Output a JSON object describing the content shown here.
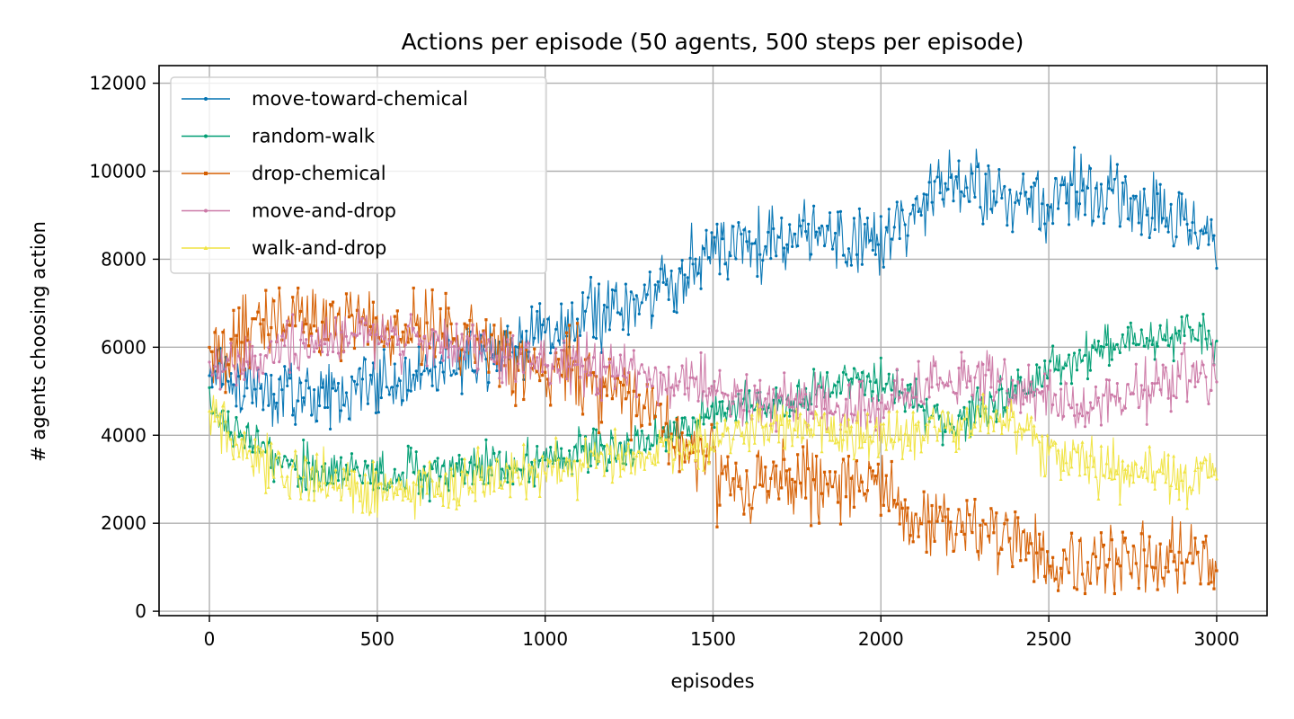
{
  "chart_data": {
    "type": "line",
    "title": "Actions per episode (50 agents, 500 steps per episode)",
    "xlabel": "episodes",
    "ylabel": "# agents choosing action",
    "xlim": [
      -150,
      3150
    ],
    "ylim": [
      -100,
      12400
    ],
    "xticks": [
      0,
      500,
      1000,
      1500,
      2000,
      2500,
      3000
    ],
    "yticks": [
      0,
      2000,
      4000,
      6000,
      8000,
      10000,
      12000
    ],
    "grid": true,
    "legend_position": "top-left",
    "series": [
      {
        "name": "move-toward-chemical",
        "color": "#0072b2",
        "marker": "circle",
        "x": [
          0,
          100,
          200,
          300,
          400,
          500,
          600,
          700,
          800,
          900,
          1000,
          1100,
          1200,
          1300,
          1400,
          1500,
          1600,
          1700,
          1800,
          1900,
          2000,
          2100,
          2200,
          2300,
          2400,
          2500,
          2600,
          2700,
          2800,
          2900,
          3000
        ],
        "values": [
          5400,
          5200,
          5000,
          4900,
          5000,
          5200,
          5400,
          5600,
          5800,
          6000,
          6300,
          6600,
          6800,
          7000,
          7600,
          8200,
          8600,
          8400,
          8700,
          8300,
          8500,
          8900,
          9800,
          9600,
          9300,
          9400,
          9700,
          9500,
          9200,
          8800,
          8600
        ],
        "amplitude": 1200
      },
      {
        "name": "random-walk",
        "color": "#009e73",
        "marker": "circle",
        "x": [
          0,
          100,
          200,
          300,
          400,
          500,
          600,
          700,
          800,
          900,
          1000,
          1100,
          1200,
          1300,
          1400,
          1500,
          1600,
          1700,
          1800,
          1900,
          2000,
          2100,
          2200,
          2300,
          2400,
          2500,
          2600,
          2700,
          2800,
          2900,
          3000
        ],
        "values": [
          4700,
          3900,
          3500,
          3200,
          3100,
          3000,
          3100,
          3200,
          3300,
          3300,
          3400,
          3600,
          3700,
          3900,
          4200,
          4500,
          4700,
          4600,
          5000,
          5300,
          5200,
          4800,
          4300,
          4600,
          4900,
          5400,
          5800,
          6000,
          6200,
          6400,
          6100
        ],
        "amplitude": 800
      },
      {
        "name": "drop-chemical",
        "color": "#d55e00",
        "marker": "square",
        "x": [
          0,
          100,
          200,
          300,
          400,
          500,
          600,
          700,
          800,
          900,
          1000,
          1100,
          1200,
          1300,
          1400,
          1500,
          1600,
          1700,
          1800,
          1900,
          2000,
          2100,
          2200,
          2300,
          2400,
          2500,
          2600,
          2700,
          2800,
          2900,
          3000
        ],
        "values": [
          5600,
          6200,
          6600,
          6700,
          6600,
          6500,
          6400,
          6200,
          6000,
          5800,
          5600,
          5400,
          5000,
          4600,
          4000,
          3200,
          2800,
          2900,
          3100,
          3000,
          2700,
          2200,
          1900,
          1800,
          1500,
          1100,
          1200,
          1100,
          1200,
          1300,
          1400
        ],
        "amplitude": 1300
      },
      {
        "name": "move-and-drop",
        "color": "#cc79a7",
        "marker": "circle",
        "x": [
          0,
          100,
          200,
          300,
          400,
          500,
          600,
          700,
          800,
          900,
          1000,
          1100,
          1200,
          1300,
          1400,
          1500,
          1600,
          1700,
          1800,
          1900,
          2000,
          2100,
          2200,
          2300,
          2400,
          2500,
          2600,
          2700,
          2800,
          2900,
          3000
        ],
        "values": [
          5500,
          5700,
          5900,
          6100,
          6200,
          6300,
          6200,
          6000,
          5900,
          5800,
          5700,
          5600,
          5500,
          5400,
          5200,
          5000,
          4800,
          4700,
          4800,
          4600,
          4700,
          5000,
          5200,
          5300,
          5100,
          4900,
          4600,
          4900,
          5100,
          5300,
          5400
        ],
        "amplitude": 1000
      },
      {
        "name": "walk-and-drop",
        "color": "#f0e442",
        "marker": "triangle",
        "x": [
          0,
          100,
          200,
          300,
          400,
          500,
          600,
          700,
          800,
          900,
          1000,
          1100,
          1200,
          1300,
          1400,
          1500,
          1600,
          1700,
          1800,
          1900,
          2000,
          2100,
          2200,
          2300,
          2400,
          2500,
          2600,
          2700,
          2800,
          2900,
          3000
        ],
        "values": [
          4500,
          3800,
          3300,
          3000,
          2800,
          2700,
          2800,
          2900,
          3000,
          3100,
          3200,
          3300,
          3400,
          3500,
          3700,
          3900,
          4100,
          4200,
          4100,
          4000,
          3900,
          4000,
          4300,
          4500,
          4200,
          3700,
          3400,
          3200,
          3100,
          3000,
          3100
        ],
        "amplitude": 900
      }
    ]
  }
}
